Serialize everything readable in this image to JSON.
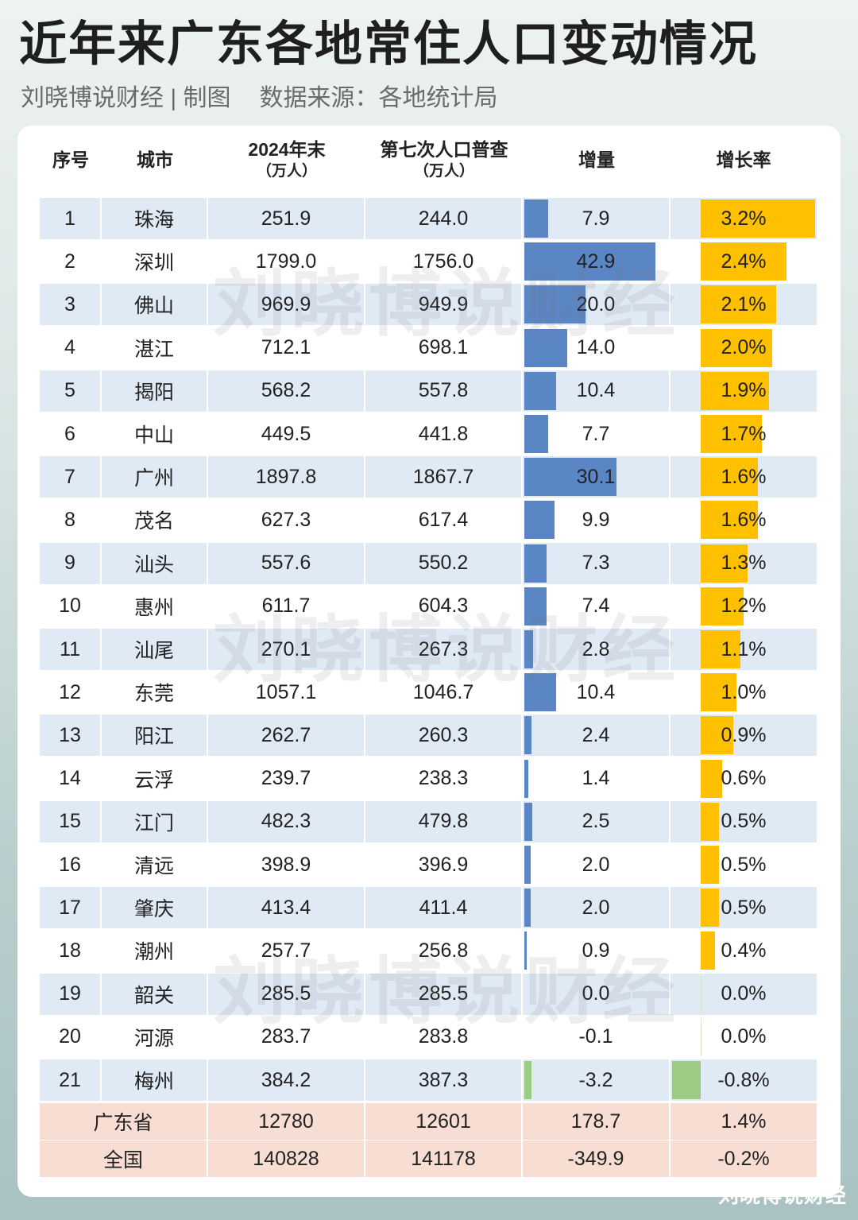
{
  "title": "近年来广东各地常住人口变动情况",
  "subtitle": {
    "author": "刘晓博说财经 | 制图",
    "source": "数据来源：各地统计局"
  },
  "watermark": "刘晓博说财经",
  "corner_watermark": "刘晓博说财经",
  "headers": {
    "index": "序号",
    "city": "城市",
    "pop2024_line1": "2024年末",
    "pop2024_line2": "（万人）",
    "census_line1": "第七次人口普查",
    "census_line2": "（万人）",
    "change": "增量",
    "growth": "增长率"
  },
  "colors": {
    "row_band": "#dfeaf5",
    "change_bar": "#5b86c5",
    "growth_bar": "#ffc000",
    "negative_bar": "#9ccc84",
    "total_band": "#f8ddd3"
  },
  "chart_data": {
    "type": "table",
    "columns": [
      "序号",
      "城市",
      "2024年末（万人）",
      "第七次人口普查（万人）",
      "增量",
      "增长率"
    ],
    "rows": [
      {
        "index": "1",
        "city": "珠海",
        "pop2024": "251.9",
        "census": "244.0",
        "change": "7.9",
        "change_value": 7.9,
        "growth": "3.2%",
        "growth_value": 3.2
      },
      {
        "index": "2",
        "city": "深圳",
        "pop2024": "1799.0",
        "census": "1756.0",
        "change": "42.9",
        "change_value": 42.9,
        "growth": "2.4%",
        "growth_value": 2.4
      },
      {
        "index": "3",
        "city": "佛山",
        "pop2024": "969.9",
        "census": "949.9",
        "change": "20.0",
        "change_value": 20.0,
        "growth": "2.1%",
        "growth_value": 2.1
      },
      {
        "index": "4",
        "city": "湛江",
        "pop2024": "712.1",
        "census": "698.1",
        "change": "14.0",
        "change_value": 14.0,
        "growth": "2.0%",
        "growth_value": 2.0
      },
      {
        "index": "5",
        "city": "揭阳",
        "pop2024": "568.2",
        "census": "557.8",
        "change": "10.4",
        "change_value": 10.4,
        "growth": "1.9%",
        "growth_value": 1.9
      },
      {
        "index": "6",
        "city": "中山",
        "pop2024": "449.5",
        "census": "441.8",
        "change": "7.7",
        "change_value": 7.7,
        "growth": "1.7%",
        "growth_value": 1.7
      },
      {
        "index": "7",
        "city": "广州",
        "pop2024": "1897.8",
        "census": "1867.7",
        "change": "30.1",
        "change_value": 30.1,
        "growth": "1.6%",
        "growth_value": 1.6
      },
      {
        "index": "8",
        "city": "茂名",
        "pop2024": "627.3",
        "census": "617.4",
        "change": "9.9",
        "change_value": 9.9,
        "growth": "1.6%",
        "growth_value": 1.6
      },
      {
        "index": "9",
        "city": "汕头",
        "pop2024": "557.6",
        "census": "550.2",
        "change": "7.3",
        "change_value": 7.3,
        "growth": "1.3%",
        "growth_value": 1.3
      },
      {
        "index": "10",
        "city": "惠州",
        "pop2024": "611.7",
        "census": "604.3",
        "change": "7.4",
        "change_value": 7.4,
        "growth": "1.2%",
        "growth_value": 1.2
      },
      {
        "index": "11",
        "city": "汕尾",
        "pop2024": "270.1",
        "census": "267.3",
        "change": "2.8",
        "change_value": 2.8,
        "growth": "1.1%",
        "growth_value": 1.1
      },
      {
        "index": "12",
        "city": "东莞",
        "pop2024": "1057.1",
        "census": "1046.7",
        "change": "10.4",
        "change_value": 10.4,
        "growth": "1.0%",
        "growth_value": 1.0
      },
      {
        "index": "13",
        "city": "阳江",
        "pop2024": "262.7",
        "census": "260.3",
        "change": "2.4",
        "change_value": 2.4,
        "growth": "0.9%",
        "growth_value": 0.9
      },
      {
        "index": "14",
        "city": "云浮",
        "pop2024": "239.7",
        "census": "238.3",
        "change": "1.4",
        "change_value": 1.4,
        "growth": "0.6%",
        "growth_value": 0.6
      },
      {
        "index": "15",
        "city": "江门",
        "pop2024": "482.3",
        "census": "479.8",
        "change": "2.5",
        "change_value": 2.5,
        "growth": "0.5%",
        "growth_value": 0.5
      },
      {
        "index": "16",
        "city": "清远",
        "pop2024": "398.9",
        "census": "396.9",
        "change": "2.0",
        "change_value": 2.0,
        "growth": "0.5%",
        "growth_value": 0.5
      },
      {
        "index": "17",
        "city": "肇庆",
        "pop2024": "413.4",
        "census": "411.4",
        "change": "2.0",
        "change_value": 2.0,
        "growth": "0.5%",
        "growth_value": 0.5
      },
      {
        "index": "18",
        "city": "潮州",
        "pop2024": "257.7",
        "census": "256.8",
        "change": "0.9",
        "change_value": 0.9,
        "growth": "0.4%",
        "growth_value": 0.4
      },
      {
        "index": "19",
        "city": "韶关",
        "pop2024": "285.5",
        "census": "285.5",
        "change": "0.0",
        "change_value": 0.0,
        "growth": "0.0%",
        "growth_value": 0.0
      },
      {
        "index": "20",
        "city": "河源",
        "pop2024": "283.7",
        "census": "283.8",
        "change": "-0.1",
        "change_value": -0.1,
        "growth": "0.0%",
        "growth_value": 0.0
      },
      {
        "index": "21",
        "city": "梅州",
        "pop2024": "384.2",
        "census": "387.3",
        "change": "-3.2",
        "change_value": -3.2,
        "growth": "-0.8%",
        "growth_value": -0.8
      }
    ],
    "totals": [
      {
        "label": "广东省",
        "pop2024": "12780",
        "census": "12601",
        "change": "178.7",
        "growth": "1.4%"
      },
      {
        "label": "全国",
        "pop2024": "140828",
        "census": "141178",
        "change": "-349.9",
        "growth": "-0.2%"
      }
    ]
  }
}
